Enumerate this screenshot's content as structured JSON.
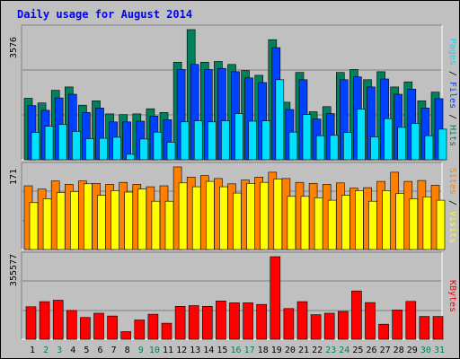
{
  "title": "Daily usage for August 2014",
  "colors": {
    "hits": "#00805c",
    "files": "#0040ff",
    "pages": "#00e0ff",
    "visits": "#ffff00",
    "sites": "#ff8000",
    "kbytes": "#ff0000",
    "weekday_label": "#000000",
    "weekend_label": "#00805c"
  },
  "chart_data": [
    {
      "type": "bar",
      "name": "hits-files-pages",
      "y_max_label": "3576",
      "ylim": [
        0,
        3576
      ],
      "legend": [
        "Pages",
        "Files",
        "Hits"
      ],
      "series": [
        {
          "name": "Hits",
          "values": [
            1690,
            1560,
            1910,
            2000,
            1500,
            1620,
            1260,
            1240,
            1260,
            1400,
            1300,
            2680,
            3576,
            2680,
            2700,
            2620,
            2450,
            2320,
            3300,
            1580,
            2400,
            1320,
            1460,
            2400,
            2480,
            2200,
            2420,
            2000,
            2140,
            1620,
            1860
          ]
        },
        {
          "name": "Files",
          "values": [
            1490,
            1360,
            1700,
            1800,
            1300,
            1420,
            1040,
            1040,
            1060,
            1200,
            1100,
            2480,
            2620,
            2480,
            2510,
            2420,
            2250,
            2120,
            3080,
            1380,
            2200,
            1120,
            1270,
            2200,
            2280,
            2000,
            2220,
            1800,
            1940,
            1420,
            1680
          ]
        },
        {
          "name": "Pages",
          "values": [
            750,
            920,
            970,
            780,
            580,
            590,
            620,
            150,
            570,
            760,
            480,
            1040,
            1070,
            1040,
            1070,
            1270,
            1060,
            1070,
            2200,
            760,
            1240,
            660,
            670,
            750,
            1390,
            630,
            1130,
            890,
            1000,
            660,
            840
          ]
        }
      ]
    },
    {
      "type": "bar",
      "name": "visits-sites",
      "y_max_label": "171",
      "ylim": [
        0,
        171
      ],
      "legend": [
        "Sites",
        "Visits"
      ],
      "series": [
        {
          "name": "Sites",
          "values": [
            132,
            125,
            142,
            135,
            142,
            137,
            135,
            139,
            135,
            130,
            132,
            171,
            150,
            153,
            147,
            136,
            144,
            150,
            160,
            147,
            139,
            137,
            135,
            138,
            127,
            128,
            141,
            160,
            141,
            143,
            133
          ]
        },
        {
          "name": "Visits",
          "values": [
            97,
            105,
            118,
            120,
            136,
            112,
            122,
            119,
            125,
            100,
            100,
            138,
            130,
            141,
            130,
            117,
            137,
            139,
            146,
            110,
            110,
            107,
            102,
            112,
            122,
            100,
            122,
            116,
            105,
            109,
            102
          ]
        }
      ]
    },
    {
      "type": "bar",
      "name": "kbytes",
      "y_max_label": "355577",
      "ylim": [
        0,
        355577
      ],
      "legend": [
        "KBytes"
      ],
      "series": [
        {
          "name": "KBytes",
          "values": [
            140000,
            162000,
            168000,
            124000,
            94000,
            112000,
            100000,
            33000,
            83000,
            108000,
            69000,
            142000,
            145000,
            142000,
            165000,
            157000,
            157000,
            150000,
            355577,
            132000,
            162000,
            106000,
            112000,
            120000,
            208000,
            158000,
            65000,
            126000,
            163000,
            98000,
            98000
          ]
        }
      ]
    }
  ],
  "x_labels": [
    {
      "label": "1",
      "weekend": false
    },
    {
      "label": "2",
      "weekend": true
    },
    {
      "label": "3",
      "weekend": true
    },
    {
      "label": "4",
      "weekend": false
    },
    {
      "label": "5",
      "weekend": false
    },
    {
      "label": "6",
      "weekend": false
    },
    {
      "label": "7",
      "weekend": false
    },
    {
      "label": "8",
      "weekend": false
    },
    {
      "label": "9",
      "weekend": true
    },
    {
      "label": "10",
      "weekend": true
    },
    {
      "label": "11",
      "weekend": false
    },
    {
      "label": "12",
      "weekend": false
    },
    {
      "label": "13",
      "weekend": false
    },
    {
      "label": "14",
      "weekend": false
    },
    {
      "label": "15",
      "weekend": false
    },
    {
      "label": "16",
      "weekend": true
    },
    {
      "label": "17",
      "weekend": true
    },
    {
      "label": "18",
      "weekend": false
    },
    {
      "label": "19",
      "weekend": false
    },
    {
      "label": "20",
      "weekend": false
    },
    {
      "label": "21",
      "weekend": false
    },
    {
      "label": "22",
      "weekend": false
    },
    {
      "label": "23",
      "weekend": true
    },
    {
      "label": "24",
      "weekend": true
    },
    {
      "label": "25",
      "weekend": false
    },
    {
      "label": "26",
      "weekend": false
    },
    {
      "label": "27",
      "weekend": false
    },
    {
      "label": "28",
      "weekend": false
    },
    {
      "label": "29",
      "weekend": false
    },
    {
      "label": "30",
      "weekend": true
    },
    {
      "label": "31",
      "weekend": true
    }
  ]
}
